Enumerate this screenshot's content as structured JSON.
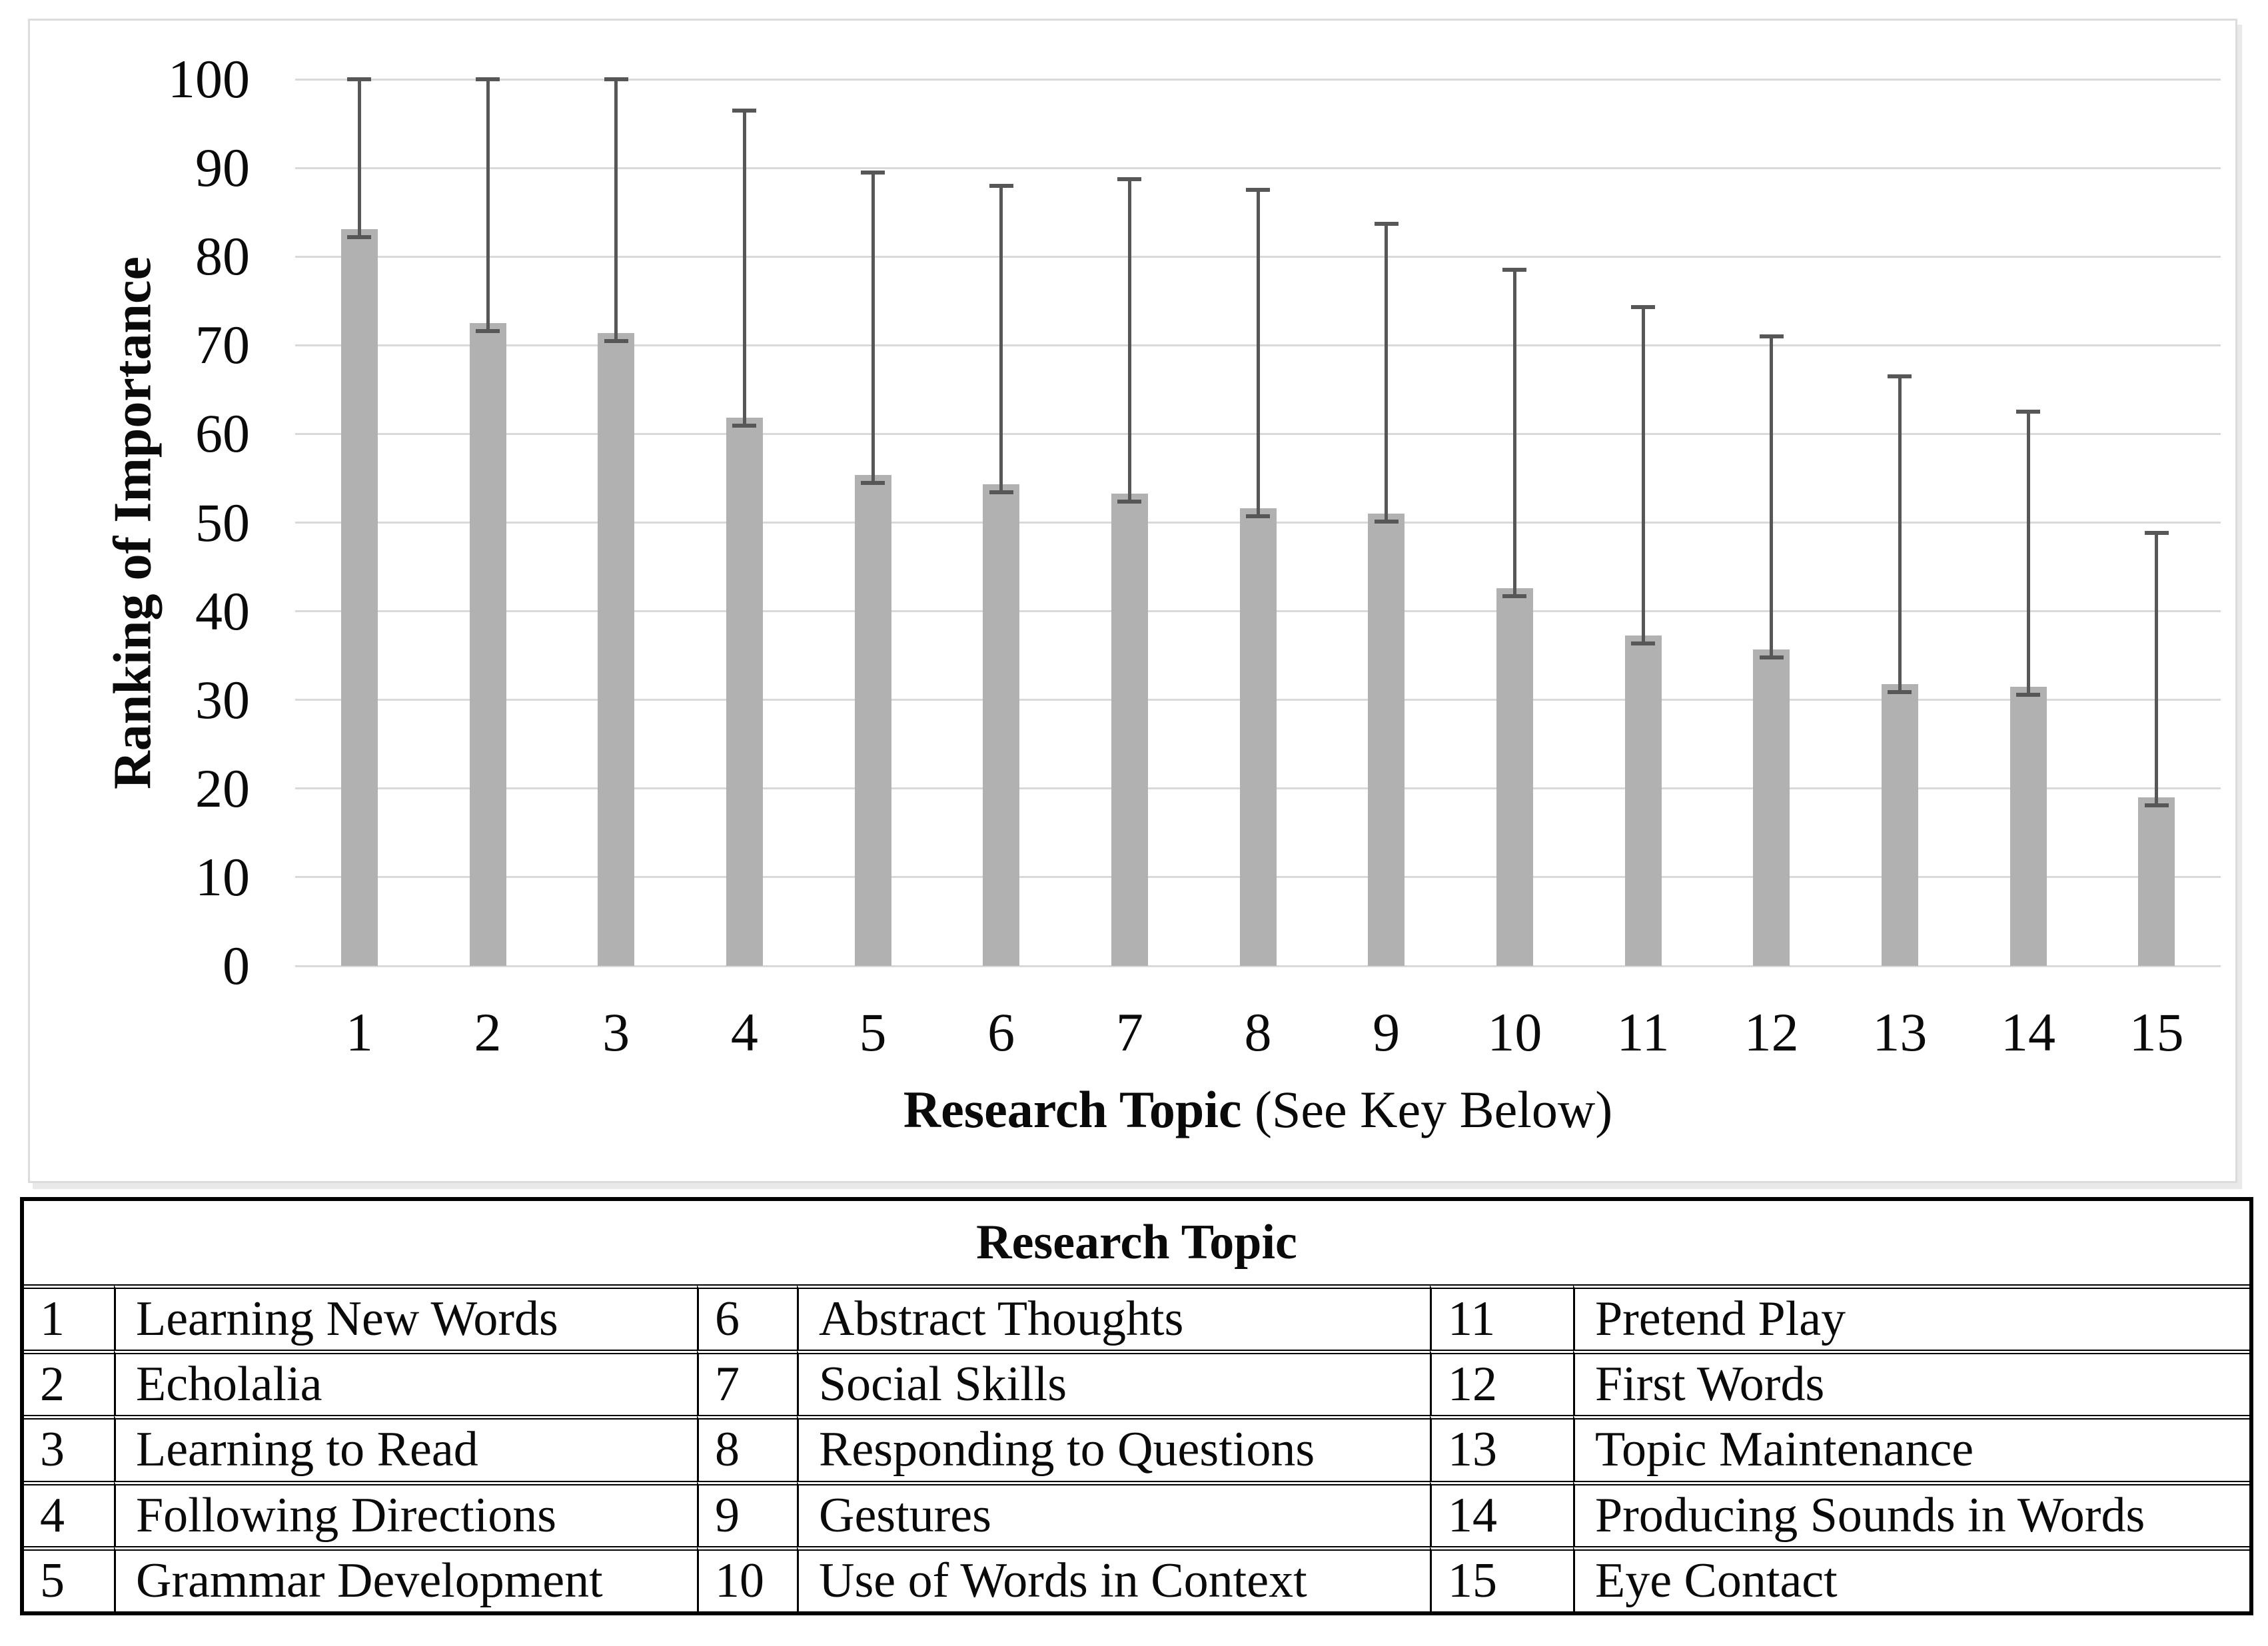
{
  "chart_data": {
    "type": "bar",
    "title": "",
    "ylabel": "Ranking of Importance",
    "xlabel_bold": "Research Topic",
    "xlabel_suffix": " (See Key Below)",
    "categories": [
      "1",
      "2",
      "3",
      "4",
      "5",
      "6",
      "7",
      "8",
      "9",
      "10",
      "11",
      "12",
      "13",
      "14",
      "15"
    ],
    "values": [
      83.1,
      72.5,
      71.4,
      61.8,
      55.4,
      54.3,
      53.3,
      51.6,
      51.0,
      42.6,
      37.3,
      35.7,
      31.8,
      31.5,
      19.0
    ],
    "error_bar_tops": [
      100,
      100,
      100,
      96.5,
      89.5,
      88.0,
      88.7,
      87.5,
      83.7,
      78.5,
      74.3,
      71.0,
      66.5,
      62.5,
      48.8
    ],
    "ylim": [
      0,
      100
    ],
    "ytick_step": 10,
    "grid": true,
    "legend": "none",
    "colors": {
      "bar": "#b1b1b1",
      "error": "#575757",
      "gridline": "#d9d9d9",
      "text": "#0a0a0a",
      "figure_border": "#dcdcdc"
    }
  },
  "key_table": {
    "header": "Research Topic",
    "rows": [
      [
        "1",
        "Learning New Words",
        "6",
        "Abstract Thoughts",
        "11",
        "Pretend Play"
      ],
      [
        "2",
        "Echolalia",
        "7",
        "Social Skills",
        "12",
        "First Words"
      ],
      [
        "3",
        "Learning to Read",
        "8",
        "Responding to Questions",
        "13",
        "Topic Maintenance"
      ],
      [
        "4",
        "Following Directions",
        "9",
        "Gestures",
        "14",
        "Producing Sounds in Words"
      ],
      [
        "5",
        "Grammar Development",
        "10",
        "Use of Words in Context",
        "15",
        "Eye Contact"
      ]
    ]
  }
}
